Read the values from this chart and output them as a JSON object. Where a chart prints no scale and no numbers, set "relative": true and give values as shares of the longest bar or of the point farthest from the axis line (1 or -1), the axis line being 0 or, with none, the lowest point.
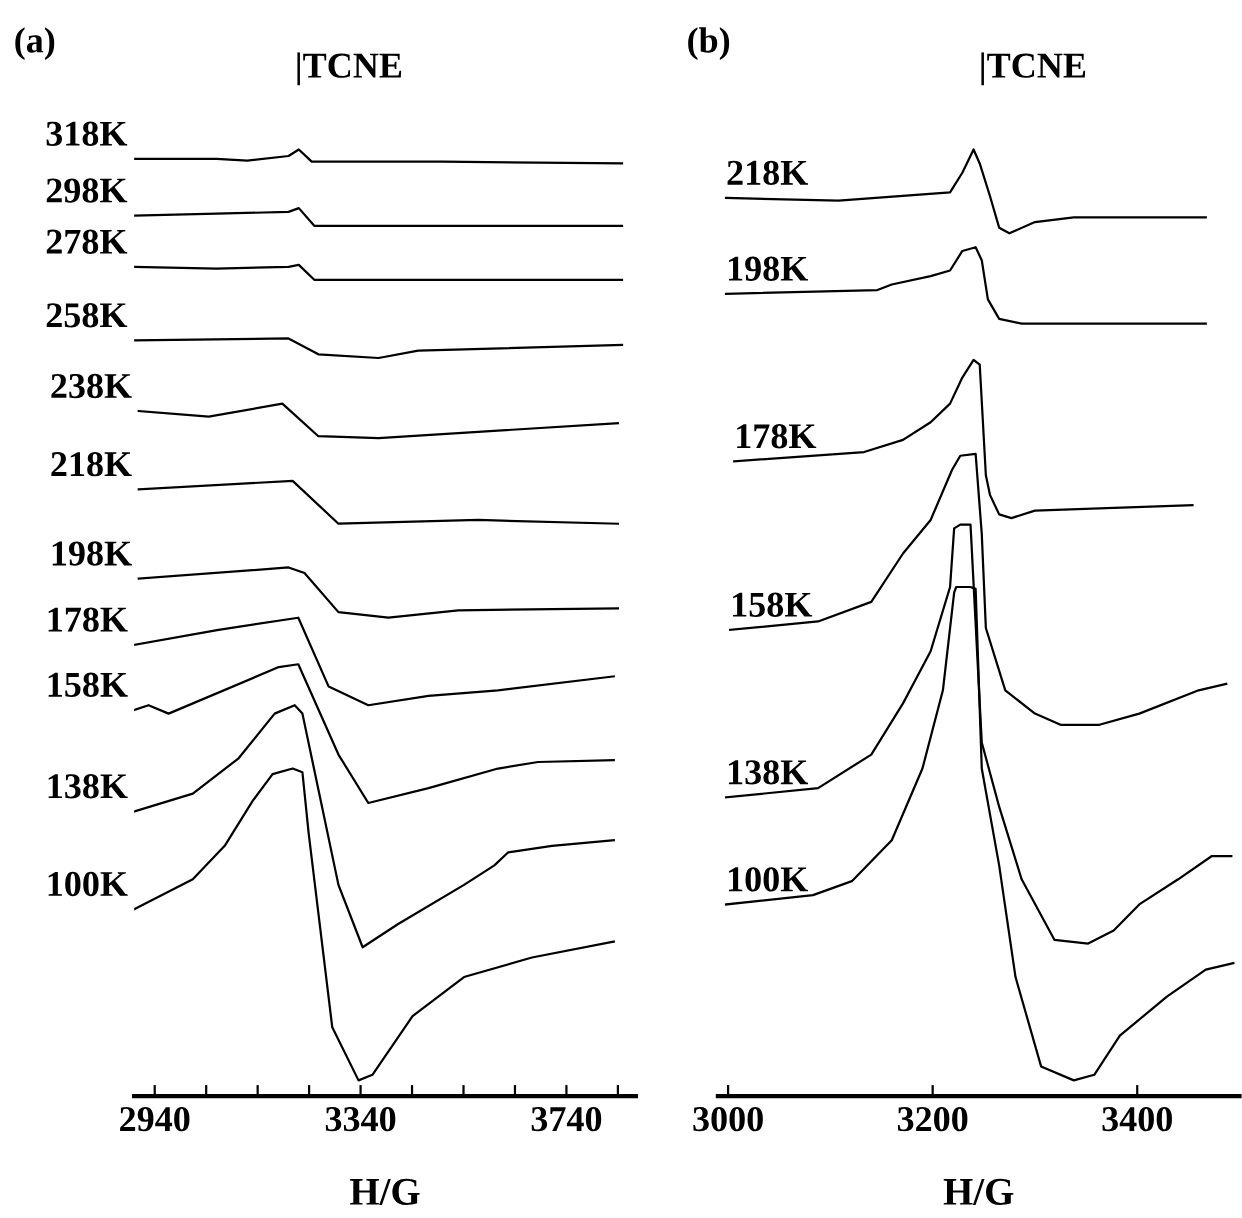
{
  "chart_data": [
    {
      "type": "line",
      "title": "(a)",
      "xlabel": "H/G",
      "relative": true,
      "tick_labels": "x",
      "grid": false,
      "legend": false,
      "marker": "none",
      "line_style": "solid",
      "annotations": [
        "|TCNE"
      ],
      "xlim": [
        2900,
        3875
      ],
      "xticks": [
        2940,
        {
          "value": 3040,
          "label": null
        },
        {
          "value": 3140,
          "label": null
        },
        {
          "value": 3240,
          "label": null
        },
        3340,
        {
          "value": 3440,
          "label": null
        },
        {
          "value": 3540,
          "label": null
        },
        {
          "value": 3640,
          "label": null
        },
        3740,
        {
          "value": 3840,
          "label": null
        }
      ],
      "series": [
        {
          "name": "318K",
          "color": "#000000",
          "x": [
            2900,
            3060,
            3120,
            3200,
            3220,
            3245,
            3500,
            3848
          ],
          "values": [
            0.99,
            0.99,
            0.988,
            0.993,
            1.0,
            0.987,
            0.987,
            0.985
          ]
        },
        {
          "name": "298K",
          "color": "#000000",
          "x": [
            2900,
            3060,
            3200,
            3220,
            3250,
            3500,
            3848
          ],
          "values": [
            0.929,
            0.931,
            0.933,
            0.937,
            0.918,
            0.918,
            0.918
          ]
        },
        {
          "name": "278K",
          "color": "#000000",
          "x": [
            2900,
            3060,
            3200,
            3220,
            3250,
            3500,
            3848
          ],
          "values": [
            0.874,
            0.872,
            0.874,
            0.876,
            0.86,
            0.86,
            0.86
          ]
        },
        {
          "name": "258K",
          "color": "#000000",
          "x": [
            2900,
            3200,
            3258,
            3375,
            3452,
            3848
          ],
          "values": [
            0.795,
            0.797,
            0.78,
            0.776,
            0.784,
            0.79
          ]
        },
        {
          "name": "238K",
          "color": "#000000",
          "x": [
            2909,
            3045,
            3188,
            3258,
            3375,
            3607,
            3840
          ],
          "values": [
            0.719,
            0.713,
            0.727,
            0.692,
            0.69,
            0.698,
            0.706
          ]
        },
        {
          "name": "218K",
          "color": "#000000",
          "x": [
            2909,
            3208,
            3297,
            3569,
            3840
          ],
          "values": [
            0.635,
            0.644,
            0.598,
            0.602,
            0.598
          ]
        },
        {
          "name": "198K",
          "color": "#000000",
          "x": [
            2909,
            3200,
            3231,
            3297,
            3394,
            3530,
            3840
          ],
          "values": [
            0.539,
            0.551,
            0.545,
            0.503,
            0.497,
            0.505,
            0.507
          ]
        },
        {
          "name": "178K",
          "color": "#000000",
          "x": [
            2901,
            3064,
            3219,
            3278,
            3355,
            3472,
            3607,
            3832
          ],
          "values": [
            0.468,
            0.484,
            0.497,
            0.423,
            0.403,
            0.413,
            0.419,
            0.434
          ]
        },
        {
          "name": "158K",
          "color": "#000000",
          "x": [
            2901,
            2928,
            2967,
            3181,
            3219,
            3297,
            3355,
            3472,
            3607,
            3685,
            3832
          ],
          "values": [
            0.398,
            0.403,
            0.394,
            0.444,
            0.447,
            0.35,
            0.298,
            0.314,
            0.335,
            0.342,
            0.344
          ]
        },
        {
          "name": "138K",
          "color": "#000000",
          "x": [
            2901,
            3014,
            3103,
            3173,
            3212,
            3227,
            3297,
            3344,
            3413,
            3541,
            3600,
            3627,
            3712,
            3832
          ],
          "values": [
            0.289,
            0.308,
            0.346,
            0.394,
            0.403,
            0.394,
            0.21,
            0.143,
            0.168,
            0.21,
            0.231,
            0.245,
            0.252,
            0.258
          ]
        },
        {
          "name": "100K",
          "color": "#000000",
          "x": [
            2901,
            3014,
            3076,
            3130,
            3169,
            3208,
            3227,
            3239,
            3285,
            3336,
            3363,
            3441,
            3541,
            3673,
            3832
          ],
          "values": [
            0.184,
            0.216,
            0.252,
            0.3,
            0.329,
            0.335,
            0.331,
            0.266,
            0.057,
            0,
            0.006,
            0.069,
            0.111,
            0.132,
            0.149
          ]
        }
      ]
    },
    {
      "type": "line",
      "title": "(b)",
      "xlabel": "H/G",
      "relative": true,
      "tick_labels": "x",
      "grid": false,
      "legend": false,
      "marker": "none",
      "line_style": "solid",
      "annotations": [
        "|TCNE"
      ],
      "xlim": [
        2990,
        3500
      ],
      "xticks": [
        3000,
        3200,
        3400
      ],
      "series": [
        {
          "name": "218K",
          "color": "#000000",
          "x": [
            2998,
            3108,
            3217,
            3229,
            3240,
            3246,
            3256,
            3265,
            3275,
            3300,
            3338,
            3467
          ],
          "values": [
            0.948,
            0.945,
            0.954,
            0.975,
            1.0,
            0.985,
            0.95,
            0.916,
            0.91,
            0.922,
            0.927,
            0.927
          ]
        },
        {
          "name": "198K",
          "color": "#000000",
          "x": [
            2998,
            3146,
            3160,
            3198,
            3217,
            3229,
            3242,
            3248,
            3254,
            3265,
            3287,
            3467
          ],
          "values": [
            0.845,
            0.849,
            0.855,
            0.864,
            0.87,
            0.891,
            0.895,
            0.881,
            0.839,
            0.818,
            0.813,
            0.813
          ]
        },
        {
          "name": "178K",
          "color": "#000000",
          "x": [
            3006,
            3133,
            3171,
            3198,
            3217,
            3229,
            3240,
            3246,
            3252,
            3256,
            3265,
            3277,
            3300,
            3454
          ],
          "values": [
            0.665,
            0.675,
            0.688,
            0.707,
            0.727,
            0.755,
            0.774,
            0.769,
            0.65,
            0.629,
            0.608,
            0.604,
            0.612,
            0.618
          ]
        },
        {
          "name": "158K",
          "color": "#000000",
          "x": [
            3002,
            3088,
            3140,
            3171,
            3198,
            3219,
            3227,
            3242,
            3248,
            3252,
            3271,
            3300,
            3325,
            3363,
            3402,
            3460,
            3487
          ],
          "values": [
            0.484,
            0.493,
            0.514,
            0.566,
            0.602,
            0.656,
            0.671,
            0.673,
            0.587,
            0.486,
            0.419,
            0.394,
            0.382,
            0.382,
            0.394,
            0.419,
            0.426
          ]
        },
        {
          "name": "138K",
          "color": "#000000",
          "x": [
            2998,
            3088,
            3140,
            3171,
            3198,
            3217,
            3221,
            3227,
            3237,
            3248,
            3265,
            3287,
            3319,
            3352,
            3377,
            3402,
            3440,
            3473,
            3492
          ],
          "values": [
            0.304,
            0.314,
            0.35,
            0.405,
            0.461,
            0.53,
            0.593,
            0.597,
            0.597,
            0.363,
            0.294,
            0.216,
            0.151,
            0.147,
            0.161,
            0.189,
            0.216,
            0.241,
            0.241
          ]
        },
        {
          "name": "100K",
          "color": "#000000",
          "x": [
            2998,
            3083,
            3121,
            3160,
            3190,
            3210,
            3221,
            3223,
            3237,
            3242,
            3248,
            3265,
            3281,
            3306,
            3338,
            3358,
            3383,
            3429,
            3467,
            3494
          ],
          "values": [
            0.189,
            0.199,
            0.214,
            0.258,
            0.335,
            0.419,
            0.524,
            0.53,
            0.53,
            0.528,
            0.335,
            0.231,
            0.111,
            0.015,
            0,
            0.006,
            0.048,
            0.09,
            0.119,
            0.126
          ]
        }
      ]
    }
  ]
}
